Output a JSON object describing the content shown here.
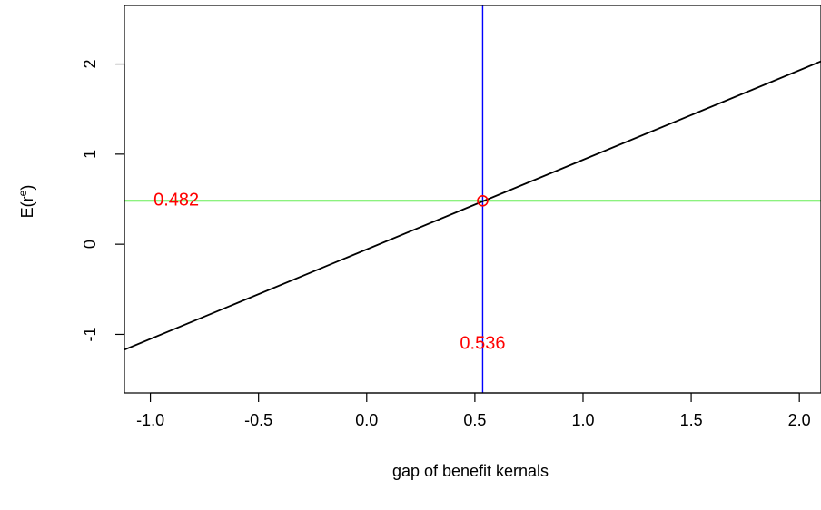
{
  "chart_data": {
    "type": "line",
    "title": "",
    "xlabel": "gap of benefit kernals",
    "ylabel_base": "E(r",
    "ylabel_sup": "e",
    "ylabel_close": ")",
    "xlim": [
      -1.12,
      2.1
    ],
    "ylim": [
      -1.65,
      2.65
    ],
    "xticks": [
      -1.0,
      -0.5,
      0.0,
      0.5,
      1.0,
      1.5,
      2.0
    ],
    "xtick_labels": [
      "-1.0",
      "-0.5",
      "0.0",
      "0.5",
      "1.0",
      "1.5",
      "2.0"
    ],
    "yticks": [
      -1,
      0,
      1,
      2
    ],
    "ytick_labels": [
      "-1",
      "0",
      "1",
      "2"
    ],
    "grid": false,
    "series": [
      {
        "x": [
          -1.12,
          2.1
        ],
        "y": [
          -1.17,
          2.03
        ],
        "color": "#000000"
      }
    ],
    "vline": {
      "x": 0.536,
      "color": "#0000ff"
    },
    "hline": {
      "y": 0.482,
      "color": "#66ee55"
    },
    "point": {
      "x": 0.536,
      "y": 0.482,
      "color": "#ff0000"
    },
    "labels": {
      "x_value": "0.536",
      "y_value": "0.482",
      "color": "#ff0000",
      "x_value_pos": [
        0.536,
        -1.11
      ],
      "y_value_pos": [
        -0.88,
        0.482
      ]
    }
  }
}
